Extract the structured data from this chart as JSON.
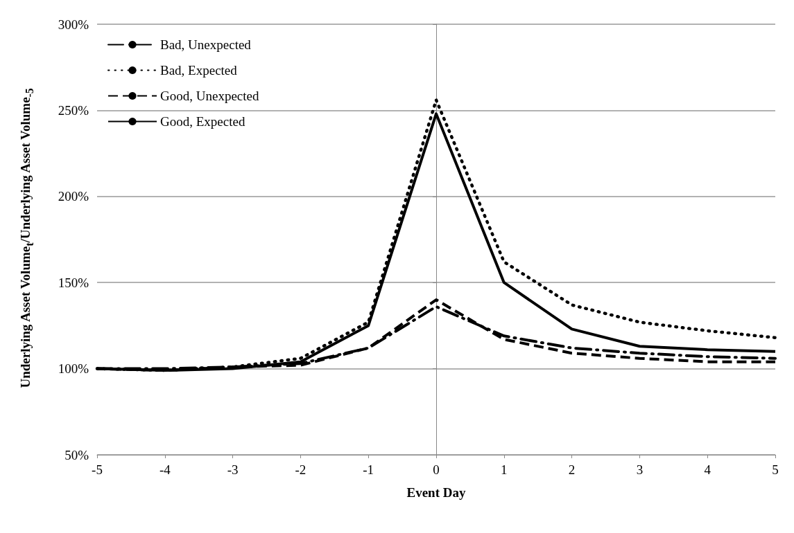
{
  "chart_data": {
    "type": "line",
    "xlabel": "Event Day",
    "ylabel": "Underlying Asset Volume$_{t}$/Underlying Asset Volume$_{-5}$",
    "x": [
      -5,
      -4,
      -3,
      -2,
      -1,
      0,
      1,
      2,
      3,
      4,
      5
    ],
    "series": [
      {
        "name": "Bad, Unexpected",
        "color": "#000000",
        "line_style": "dashdot",
        "values": [
          100,
          100,
          101,
          103,
          112,
          136,
          119,
          112,
          109,
          107,
          106
        ]
      },
      {
        "name": "Bad, Expected",
        "color": "#000000",
        "line_style": "dotted",
        "values": [
          100,
          99,
          101,
          106,
          127,
          256,
          162,
          137,
          127,
          122,
          118
        ]
      },
      {
        "name": "Good, Unexpected",
        "color": "#000000",
        "line_style": "dashed",
        "values": [
          100,
          99,
          101,
          102,
          112,
          140,
          117,
          109,
          106,
          104,
          104
        ]
      },
      {
        "name": "Good, Expected",
        "color": "#000000",
        "line_style": "solid",
        "values": [
          100,
          99,
          100,
          104,
          125,
          248,
          150,
          123,
          113,
          111,
          110
        ]
      }
    ],
    "xlim": [
      -5,
      5
    ],
    "xticks": [
      -5,
      -4,
      -3,
      -2,
      -1,
      0,
      1,
      2,
      3,
      4,
      5
    ],
    "ylim": [
      50,
      300
    ],
    "yticks": [
      {
        "value": 50,
        "label": "50%"
      },
      {
        "value": 100,
        "label": "100%"
      },
      {
        "value": 150,
        "label": "150%"
      },
      {
        "value": 200,
        "label": "200%"
      },
      {
        "value": 250,
        "label": "250%"
      },
      {
        "value": 300,
        "label": "300%"
      }
    ],
    "grid": "y",
    "legend": "top left",
    "marker": "none"
  }
}
